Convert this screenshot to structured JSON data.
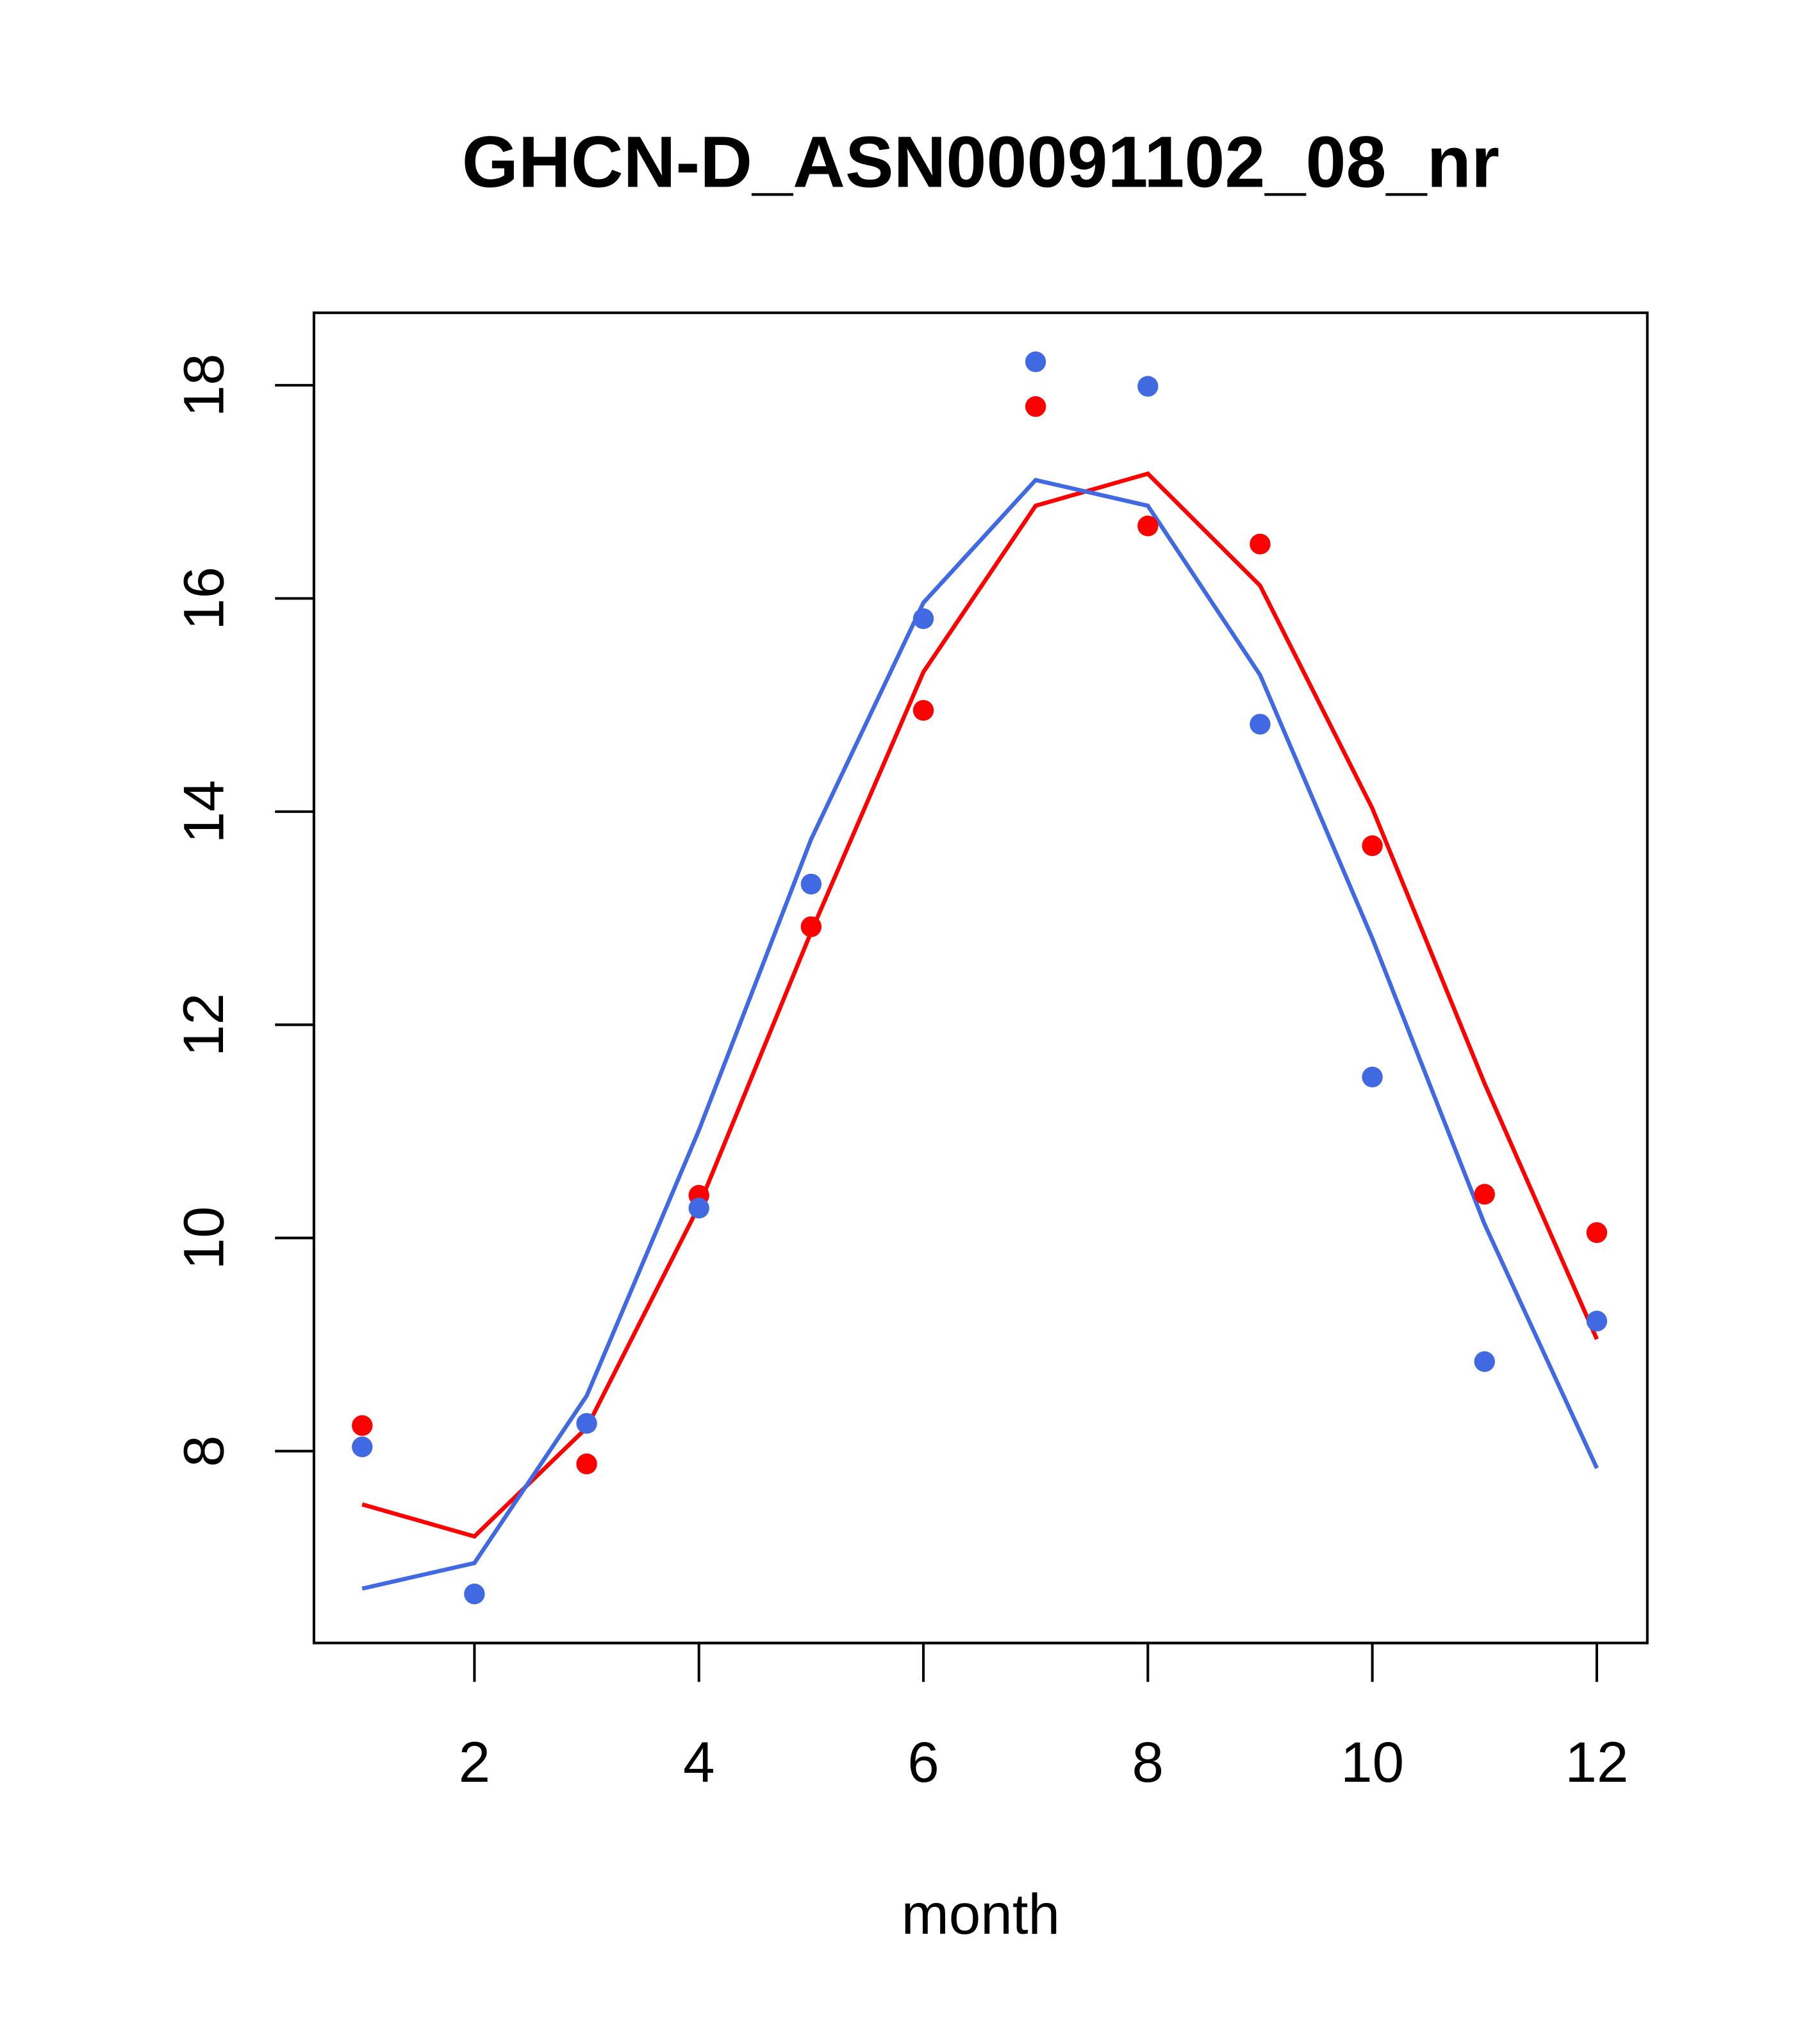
{
  "chart_data": {
    "type": "line",
    "title": "GHCN-D_ASN00091102_08_nr",
    "xlabel": "month",
    "ylabel": "",
    "xlim": [
      0.57,
      12.45
    ],
    "ylim": [
      6.2,
      18.68
    ],
    "xticks": [
      2,
      4,
      6,
      8,
      10,
      12
    ],
    "xtick_labels": [
      "2",
      "4",
      "6",
      "8",
      "10",
      "12"
    ],
    "yticks": [
      8,
      10,
      12,
      14,
      16,
      18
    ],
    "ytick_labels": [
      "8",
      "10",
      "12",
      "14",
      "16",
      "18"
    ],
    "grid": false,
    "x": [
      1,
      2,
      3,
      4,
      5,
      6,
      7,
      8,
      9,
      10,
      11,
      12
    ],
    "series": [
      {
        "name": "red points",
        "kind": "points",
        "color": "#ff0000",
        "x": [
          1,
          3,
          4,
          5,
          6,
          7,
          8,
          9,
          10,
          11,
          12
        ],
        "values": [
          8.24,
          7.88,
          10.4,
          12.92,
          14.95,
          17.8,
          16.68,
          16.51,
          13.68,
          10.41,
          10.05
        ]
      },
      {
        "name": "blue points",
        "kind": "points",
        "color": "#4169e1",
        "x": [
          1,
          2,
          3,
          4,
          5,
          6,
          7,
          8,
          9,
          10,
          11,
          12
        ],
        "values": [
          8.04,
          6.66,
          8.26,
          10.28,
          13.32,
          15.81,
          18.22,
          17.99,
          14.82,
          11.51,
          8.84,
          9.22
        ]
      },
      {
        "name": "red line",
        "kind": "line",
        "color": "#ff0000",
        "x": [
          1,
          2,
          3,
          4,
          5,
          6,
          7,
          8,
          9,
          10,
          11,
          12
        ],
        "values": [
          7.5,
          7.2,
          8.22,
          10.3,
          12.87,
          15.31,
          16.87,
          17.17,
          16.12,
          14.03,
          11.45,
          9.05
        ]
      },
      {
        "name": "blue line",
        "kind": "line",
        "color": "#4169e1",
        "x": [
          1,
          2,
          3,
          4,
          5,
          6,
          7,
          8,
          9,
          10,
          11,
          12
        ],
        "values": [
          6.71,
          6.95,
          8.52,
          11.01,
          13.74,
          15.96,
          17.11,
          16.87,
          15.28,
          12.81,
          10.13,
          7.84
        ]
      }
    ]
  }
}
